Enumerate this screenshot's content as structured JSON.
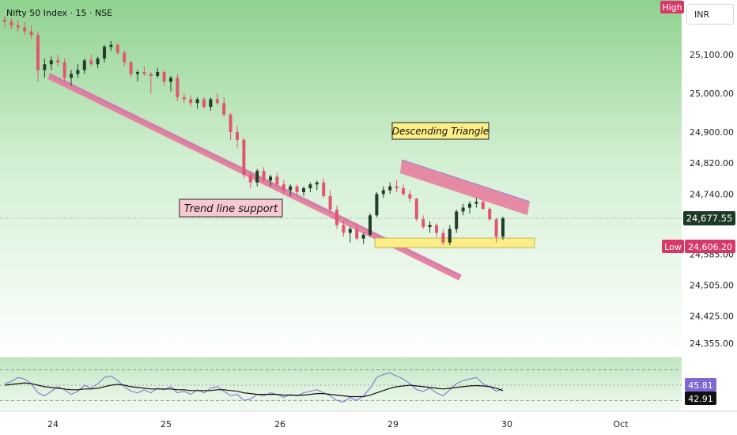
{
  "chart_data": {
    "type": "candlestick",
    "title": "Nifty 50 Index · 15 · NSE",
    "currency": "INR",
    "ylim": [
      24300,
      25200
    ],
    "y_ticks": [
      "25,100.00",
      "25,000.00",
      "24,900.00",
      "24,820.00",
      "24,740.00",
      "24,585.00",
      "24,505.00",
      "24,425.00",
      "24,355.00"
    ],
    "y_tick_values": [
      25100,
      25000,
      24900,
      24820,
      24740,
      24585,
      24505,
      24425,
      24355
    ],
    "x_ticks": [
      "24",
      "25",
      "26",
      "29",
      "30",
      "Oct"
    ],
    "candles": [
      [
        25190,
        25200,
        25170,
        25185
      ],
      [
        25185,
        25195,
        25165,
        25175
      ],
      [
        25175,
        25190,
        25160,
        25170
      ],
      [
        25170,
        25185,
        25150,
        25160
      ],
      [
        25160,
        25175,
        25140,
        25150
      ],
      [
        25150,
        25160,
        25030,
        25060
      ],
      [
        25060,
        25090,
        25040,
        25075
      ],
      [
        25075,
        25095,
        25060,
        25085
      ],
      [
        25085,
        25100,
        25070,
        25080
      ],
      [
        25080,
        25090,
        25030,
        25040
      ],
      [
        25040,
        25060,
        25020,
        25050
      ],
      [
        25050,
        25075,
        25040,
        25060
      ],
      [
        25060,
        25090,
        25050,
        25085
      ],
      [
        25085,
        25100,
        25070,
        25075
      ],
      [
        25075,
        25095,
        25065,
        25090
      ],
      [
        25090,
        25125,
        25080,
        25120
      ],
      [
        25120,
        25135,
        25110,
        25125
      ],
      [
        25125,
        25130,
        25100,
        25105
      ],
      [
        25105,
        25110,
        25070,
        25080
      ],
      [
        25080,
        25085,
        25040,
        25050
      ],
      [
        25050,
        25060,
        25030,
        25055
      ],
      [
        25055,
        25070,
        25045,
        25050
      ],
      [
        25050,
        25055,
        25000,
        25045
      ],
      [
        25045,
        25065,
        25040,
        25055
      ],
      [
        25055,
        25060,
        25020,
        25030
      ],
      [
        25030,
        25045,
        25005,
        25040
      ],
      [
        25040,
        25050,
        24980,
        24990
      ],
      [
        24990,
        25000,
        24975,
        24985
      ],
      [
        24985,
        24995,
        24965,
        24975
      ],
      [
        24975,
        24990,
        24960,
        24985
      ],
      [
        24985,
        24990,
        24960,
        24965
      ],
      [
        24965,
        24990,
        24955,
        24985
      ],
      [
        24985,
        25000,
        24970,
        24975
      ],
      [
        24975,
        24990,
        24940,
        24945
      ],
      [
        24945,
        24950,
        24880,
        24900
      ],
      [
        24900,
        24915,
        24860,
        24880
      ],
      [
        24880,
        24885,
        24780,
        24790
      ],
      [
        24790,
        24800,
        24755,
        24770
      ],
      [
        24770,
        24805,
        24760,
        24800
      ],
      [
        24800,
        24810,
        24770,
        24775
      ],
      [
        24775,
        24790,
        24760,
        24785
      ],
      [
        24785,
        24795,
        24760,
        24765
      ],
      [
        24765,
        24775,
        24740,
        24750
      ],
      [
        24750,
        24765,
        24735,
        24760
      ],
      [
        24760,
        24765,
        24735,
        24745
      ],
      [
        24745,
        24760,
        24735,
        24755
      ],
      [
        24755,
        24770,
        24745,
        24765
      ],
      [
        24765,
        24775,
        24750,
        24770
      ],
      [
        24770,
        24780,
        24730,
        24735
      ],
      [
        24735,
        24750,
        24690,
        24700
      ],
      [
        24700,
        24710,
        24650,
        24660
      ],
      [
        24660,
        24670,
        24630,
        24640
      ],
      [
        24640,
        24655,
        24615,
        24650
      ],
      [
        24650,
        24665,
        24620,
        24625
      ],
      [
        24625,
        24640,
        24612,
        24635
      ],
      [
        24635,
        24690,
        24630,
        24685
      ],
      [
        24685,
        24745,
        24680,
        24740
      ],
      [
        24740,
        24760,
        24730,
        24750
      ],
      [
        24750,
        24770,
        24740,
        24760
      ],
      [
        24760,
        24775,
        24745,
        24755
      ],
      [
        24755,
        24765,
        24735,
        24740
      ],
      [
        24740,
        24750,
        24720,
        24728
      ],
      [
        24728,
        24730,
        24670,
        24675
      ],
      [
        24675,
        24685,
        24650,
        24655
      ],
      [
        24655,
        24670,
        24640,
        24660
      ],
      [
        24660,
        24665,
        24630,
        24640
      ],
      [
        24640,
        24650,
        24608,
        24615
      ],
      [
        24615,
        24660,
        24608,
        24650
      ],
      [
        24650,
        24700,
        24640,
        24695
      ],
      [
        24695,
        24715,
        24685,
        24705
      ],
      [
        24705,
        24722,
        24690,
        24715
      ],
      [
        24715,
        24730,
        24705,
        24720
      ],
      [
        24720,
        24725,
        24700,
        24702
      ],
      [
        24702,
        24705,
        24670,
        24675
      ],
      [
        24675,
        24680,
        24615,
        24630
      ],
      [
        24630,
        24682,
        24622,
        24677.55
      ]
    ],
    "last_price": "24,677.55",
    "high_label": "High",
    "low_label": "Low",
    "low_price": "24,606.20",
    "annotations": {
      "trend_line_support": "Trend line support",
      "descending_triangle": "Descending Triangle"
    },
    "oscillator": {
      "ylim": [
        20,
        80
      ],
      "value_fast": "45.81",
      "value_slow": "42.91",
      "levels": [
        30,
        50,
        70
      ],
      "fast": [
        52,
        55,
        60,
        58,
        52,
        40,
        36,
        42,
        48,
        44,
        38,
        42,
        50,
        46,
        52,
        60,
        62,
        56,
        48,
        42,
        40,
        44,
        40,
        46,
        44,
        48,
        40,
        42,
        38,
        44,
        40,
        46,
        48,
        42,
        36,
        38,
        30,
        32,
        38,
        36,
        40,
        38,
        34,
        38,
        36,
        40,
        42,
        44,
        40,
        36,
        30,
        28,
        34,
        30,
        36,
        46,
        60,
        64,
        66,
        62,
        58,
        52,
        44,
        42,
        46,
        40,
        36,
        44,
        52,
        56,
        58,
        60,
        52,
        48,
        42,
        45.81
      ],
      "slow": [
        50,
        51,
        52,
        53,
        52,
        50,
        48,
        47,
        46,
        45,
        44,
        44,
        45,
        45,
        46,
        48,
        50,
        51,
        50,
        48,
        47,
        46,
        45,
        45,
        45,
        45,
        44,
        44,
        43,
        43,
        43,
        43,
        44,
        44,
        43,
        42,
        40,
        39,
        38,
        38,
        38,
        38,
        37,
        37,
        37,
        37,
        38,
        39,
        39,
        38,
        37,
        36,
        35,
        35,
        35,
        37,
        40,
        43,
        46,
        48,
        49,
        50,
        49,
        48,
        47,
        46,
        45,
        46,
        47,
        48,
        49,
        49.5,
        49,
        48,
        46,
        42.91
      ]
    },
    "colors": {
      "bull": "#1f3d2a",
      "bear": "#e0566f",
      "pink_band": "#e8789a",
      "yellow_zone": "#fbee86",
      "low_tag": "#d63869",
      "last_tag": "#1c3a24",
      "osc_fast": "#7d68d6",
      "osc_slow": "#111111"
    }
  }
}
